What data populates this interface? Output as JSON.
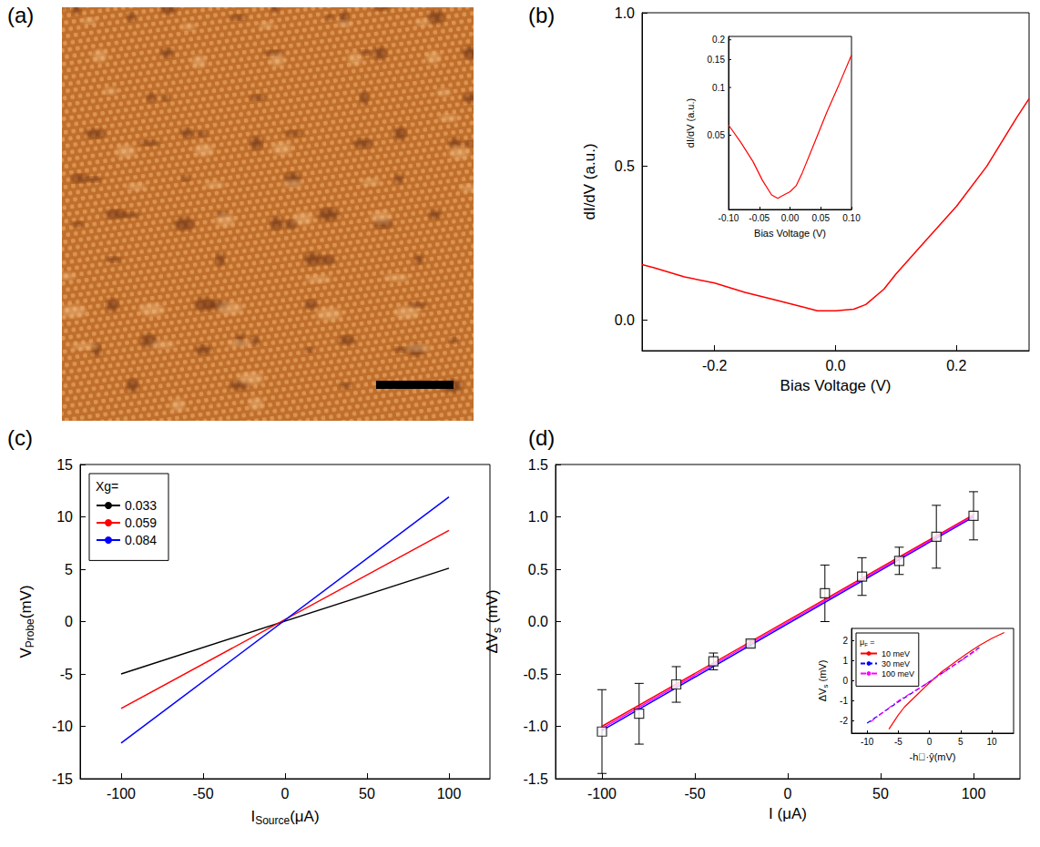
{
  "chart_data": [
    {
      "label": "(a)",
      "type": "image"
    },
    {
      "label": "(b)",
      "type": "line",
      "xlabel": "Bias Voltage (V)",
      "ylabel": "dI/dV (a.u.)",
      "xlim": [
        -0.32,
        0.32
      ],
      "xticks": [
        -0.2,
        {
          "value": 0,
          "label": "0.0"
        },
        0.2
      ],
      "ylim": [
        -0.1,
        1.0
      ],
      "yticks": [
        {
          "value": 0,
          "label": "0.0"
        },
        0.5,
        {
          "value": 1,
          "label": "1.0"
        }
      ],
      "grid": false,
      "series": [
        {
          "color": "#ff0000",
          "x": [
            -0.32,
            -0.3,
            -0.25,
            -0.2,
            -0.15,
            -0.1,
            -0.05,
            -0.03,
            0,
            0.03,
            0.05,
            0.08,
            0.1,
            0.15,
            0.2,
            0.25,
            0.3,
            0.32
          ],
          "values": [
            0.18,
            0.17,
            0.14,
            0.12,
            0.09,
            0.065,
            0.04,
            0.03,
            0.03,
            0.035,
            0.05,
            0.1,
            0.15,
            0.26,
            0.37,
            0.5,
            0.66,
            0.72
          ]
        }
      ],
      "inset": {
        "type": "line",
        "log": "y",
        "xlabel": "Bias Voltage (V)",
        "ylabel": "dI/dV (a.u.)",
        "xlim": [
          -0.1,
          0.1
        ],
        "xticks": [
          {
            "value": -0.1,
            "label": "-0.10"
          },
          -0.05,
          {
            "value": 0,
            "label": "0.00"
          },
          0.05,
          {
            "value": 0.1,
            "label": "0.10"
          }
        ],
        "ylim": [
          0.017,
          0.21
        ],
        "yticks": [
          0.05,
          0.1,
          0.15,
          0.2
        ],
        "grid": false,
        "series": [
          {
            "color": "#ff0000",
            "x": [
              -0.1,
              -0.08,
              -0.06,
              -0.045,
              -0.03,
              -0.02,
              -0.01,
              0,
              0.01,
              0.02,
              0.04,
              0.06,
              0.08,
              0.1
            ],
            "values": [
              0.058,
              0.045,
              0.034,
              0.026,
              0.021,
              0.02,
              0.021,
              0.022,
              0.024,
              0.029,
              0.045,
              0.07,
              0.105,
              0.16
            ]
          }
        ]
      }
    },
    {
      "label": "(c)",
      "type": "line",
      "xlabel": [
        {
          "t": "I"
        },
        {
          "t": "Source",
          "sub": true
        },
        {
          "t": "(μA)"
        }
      ],
      "ylabel": [
        {
          "t": "V"
        },
        {
          "t": "Probe",
          "sub": true
        },
        {
          "t": "(mV)"
        }
      ],
      "xlim": [
        -125,
        125
      ],
      "xticks": [
        -100,
        -50,
        0,
        50,
        100
      ],
      "ylim": [
        -15,
        15
      ],
      "yticks": [
        -15,
        -10,
        -5,
        0,
        5,
        10,
        15
      ],
      "grid": false,
      "legend": "upper left",
      "legend_title": "Xg=",
      "series": [
        {
          "name": "0.033",
          "color": "#000000",
          "x": [
            -100,
            100
          ],
          "values": [
            -5.0,
            5.1
          ]
        },
        {
          "name": "0.059",
          "color": "#ff0000",
          "x": [
            -100,
            100
          ],
          "values": [
            -8.3,
            8.7
          ]
        },
        {
          "name": "0.084",
          "color": "#0000ff",
          "x": [
            -100,
            100
          ],
          "values": [
            -11.6,
            11.9
          ]
        }
      ]
    },
    {
      "label": "(d)",
      "type": "scatter",
      "xlabel": "I (μA)",
      "ylabel": [
        {
          "t": "ΔV"
        },
        {
          "t": "s",
          "sub": true
        },
        {
          "t": " (mV)"
        }
      ],
      "xlim": [
        -125,
        125
      ],
      "xticks": [
        -100,
        -50,
        0,
        50,
        100
      ],
      "ylim": [
        -1.5,
        1.5
      ],
      "yticks": [
        -1.5,
        {
          "value": -1,
          "label": "-1.0"
        },
        -0.5,
        {
          "value": 0,
          "label": "0.0"
        },
        0.5,
        {
          "value": 1,
          "label": "1.0"
        },
        1.5
      ],
      "grid": false,
      "series": [
        {
          "type": "scatter",
          "marker": "square_open",
          "color": "#000000",
          "x": [
            -100,
            -80,
            -60,
            -40,
            -20,
            20,
            40,
            60,
            80,
            100
          ],
          "values": [
            -1.05,
            -0.88,
            -0.6,
            -0.38,
            -0.21,
            0.27,
            0.43,
            0.58,
            0.81,
            1.01
          ],
          "errors": [
            0.4,
            0.29,
            0.17,
            0.08,
            0.03,
            0.27,
            0.18,
            0.13,
            0.3,
            0.23
          ]
        },
        {
          "type": "line",
          "color": "#ff0000",
          "x": [
            -100,
            100
          ],
          "values": [
            -1.0,
            1.02
          ]
        },
        {
          "type": "line",
          "color": "#0000ff",
          "x": [
            -100,
            100
          ],
          "values": [
            -1.04,
            1.0
          ]
        },
        {
          "type": "line",
          "color": "#ff00ff",
          "x": [
            -100,
            100
          ],
          "values": [
            -1.02,
            1.01
          ]
        }
      ],
      "inset": {
        "type": "line",
        "xlabel": "-h⃗·ŷ(mV)",
        "ylabel": [
          {
            "t": "ΔV"
          },
          {
            "t": "s",
            "sub": true
          },
          {
            "t": " (mV)"
          }
        ],
        "xlim": [
          -12.5,
          13.5
        ],
        "xticks": [
          -10,
          -5,
          0,
          5,
          10
        ],
        "ylim": [
          -2.6,
          2.6
        ],
        "yticks": [
          -2,
          -1,
          0,
          1,
          2
        ],
        "grid": false,
        "legend": "upper left",
        "legend_title": [
          {
            "t": "μ"
          },
          {
            "t": "F",
            "sub": true
          },
          {
            "t": " ="
          }
        ],
        "series": [
          {
            "name": "10 meV",
            "color": "#ff0000",
            "line_style": "solid",
            "x": [
              -6.5,
              -5,
              -4,
              -2,
              0,
              2,
              4,
              6,
              8,
              10,
              12
            ],
            "values": [
              -2.4,
              -1.7,
              -1.3,
              -0.7,
              -0.1,
              0.45,
              0.9,
              1.35,
              1.75,
              2.1,
              2.4
            ]
          },
          {
            "name": "30 meV",
            "color": "#0000ff",
            "line_style": "dashed",
            "x": [
              -10,
              -5,
              0,
              5,
              8
            ],
            "values": [
              -2.1,
              -1.05,
              -0.05,
              1.0,
              1.65
            ]
          },
          {
            "name": "100 meV",
            "color": "#ff00ff",
            "line_style": "dashdot",
            "x": [
              -9.5,
              -5,
              0,
              5,
              8
            ],
            "values": [
              -2.05,
              -1.0,
              -0.05,
              0.98,
              1.62
            ]
          }
        ]
      }
    }
  ]
}
